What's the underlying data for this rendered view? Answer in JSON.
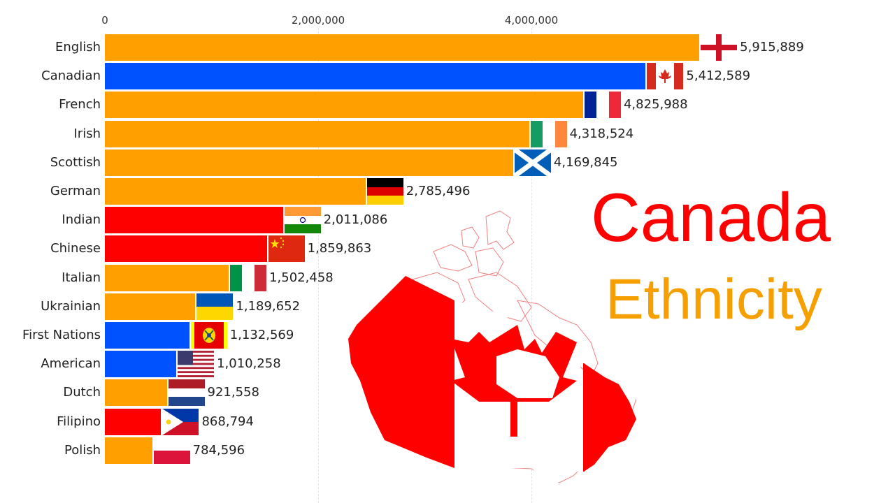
{
  "title": {
    "line1": "Canada",
    "line2": "Ethnicity",
    "line1_color": "#ff0000",
    "line2_color": "#f5a000"
  },
  "axis": {
    "ticks": [
      {
        "label": "0",
        "value": 0
      },
      {
        "label": "2,000,000",
        "value": 2000000
      },
      {
        "label": "4,000,000",
        "value": 4000000
      }
    ]
  },
  "colors": {
    "europe": "#ffa000",
    "americas": "#0052ff",
    "asia": "#ff0000"
  },
  "chart_data": {
    "type": "bar",
    "orientation": "horizontal",
    "title": "Canada Ethnicity",
    "xlabel": "",
    "ylabel": "",
    "xlim": [
      0,
      6000000
    ],
    "x_ticks": [
      "0",
      "2,000,000",
      "4,000,000"
    ],
    "grid": true,
    "legend": "none",
    "categories": [
      "English",
      "Canadian",
      "French",
      "Irish",
      "Scottish",
      "German",
      "Indian",
      "Chinese",
      "Italian",
      "Ukrainian",
      "First Nations",
      "American",
      "Dutch",
      "Filipino",
      "Polish"
    ],
    "values": [
      5915889,
      5412589,
      4825988,
      4318524,
      4169845,
      2785496,
      2011086,
      1859863,
      1502458,
      1189652,
      1132569,
      1010258,
      921558,
      868794,
      784596
    ],
    "value_labels": [
      "5,915,889",
      "5,412,589",
      "4,825,988",
      "4,318,524",
      "4,169,845",
      "2,785,496",
      "2,011,086",
      "1,859,863",
      "1,502,458",
      "1,189,652",
      "1,132,569",
      "1,010,258",
      "921,558",
      "868,794",
      "784,596"
    ],
    "bar_groups": [
      "europe",
      "americas",
      "europe",
      "europe",
      "europe",
      "europe",
      "asia",
      "asia",
      "europe",
      "europe",
      "americas",
      "americas",
      "europe",
      "asia",
      "europe"
    ],
    "flags": [
      "england-flag",
      "canada-flag",
      "france-flag",
      "ireland-flag",
      "scotland-flag",
      "germany-flag",
      "india-flag",
      "china-flag",
      "italy-flag",
      "ukraine-flag",
      "first-nations-flag",
      "usa-flag",
      "netherlands-flag",
      "philippines-flag",
      "poland-flag"
    ]
  }
}
